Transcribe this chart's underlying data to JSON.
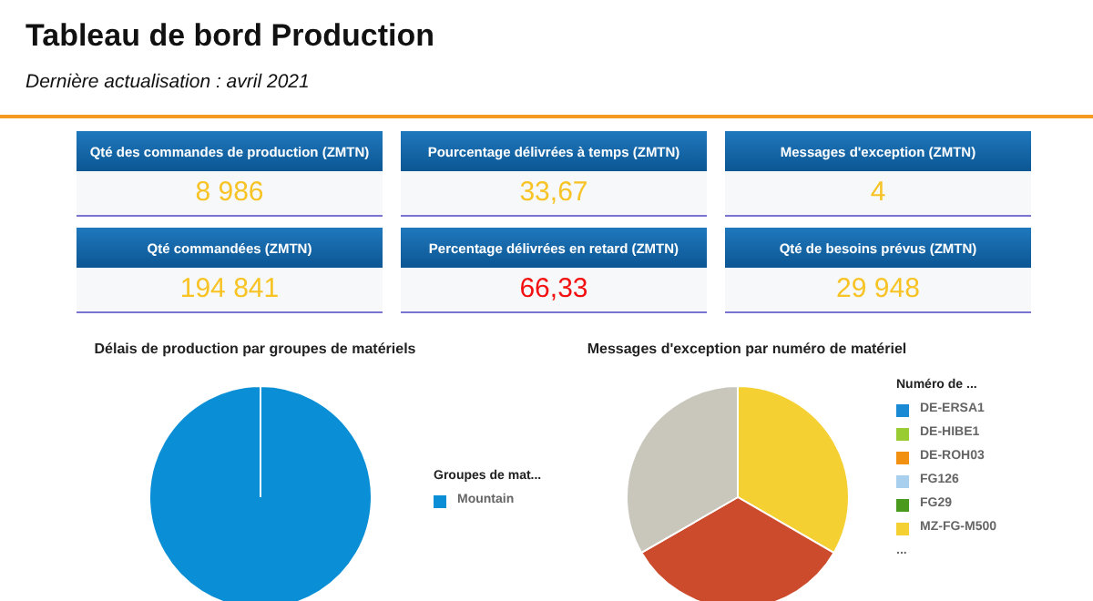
{
  "chart_data": [
    {
      "type": "other",
      "title": "Tableau de bord Production",
      "subtitle": "Dernière actualisation : avril 2021",
      "categories": [
        "Qté des commandes de production (ZMTN)",
        "Pourcentage délivrées à temps (ZMTN)",
        "Messages d'exception (ZMTN)",
        "Qté commandées (ZMTN)",
        "Percentage délivrées en retard (ZMTN)",
        "Qté de besoins prévus (ZMTN)"
      ],
      "value_labels": [
        "8 986",
        "33,67",
        "4",
        "194 841",
        "66,33",
        "29 948"
      ],
      "colors": [
        "#f7c325",
        "#f7c325",
        "#f7c325",
        "#f7c325",
        "#f21010",
        "#f7c325"
      ]
    },
    {
      "type": "pie",
      "title": "Délais de production par groupes de matériels",
      "legend_title": "Groupes de mat...",
      "legend": "right",
      "categories": [
        "Mountain"
      ],
      "values": [
        100
      ],
      "colors": [
        "#0a8fd6"
      ]
    },
    {
      "type": "pie",
      "title": "Messages d'exception par numéro de matériel",
      "legend_title": "Numéro de ...",
      "legend": "right",
      "categories": [
        "DE-ERSA1",
        "DE-HIBE1",
        "DE-ROH03",
        "FG126",
        "FG29",
        "MZ-FG-M500",
        null,
        null
      ],
      "values": [
        0,
        0,
        0,
        0,
        0,
        33.34,
        33.33,
        33.33
      ],
      "colors": [
        "#1a8ad4",
        "#99cc33",
        "#f29111",
        "#a8d0ee",
        "#4a9a1e",
        "#f5d033",
        "#cc4b2c",
        "#c9c6bb"
      ],
      "annotations": [
        "..."
      ]
    }
  ]
}
